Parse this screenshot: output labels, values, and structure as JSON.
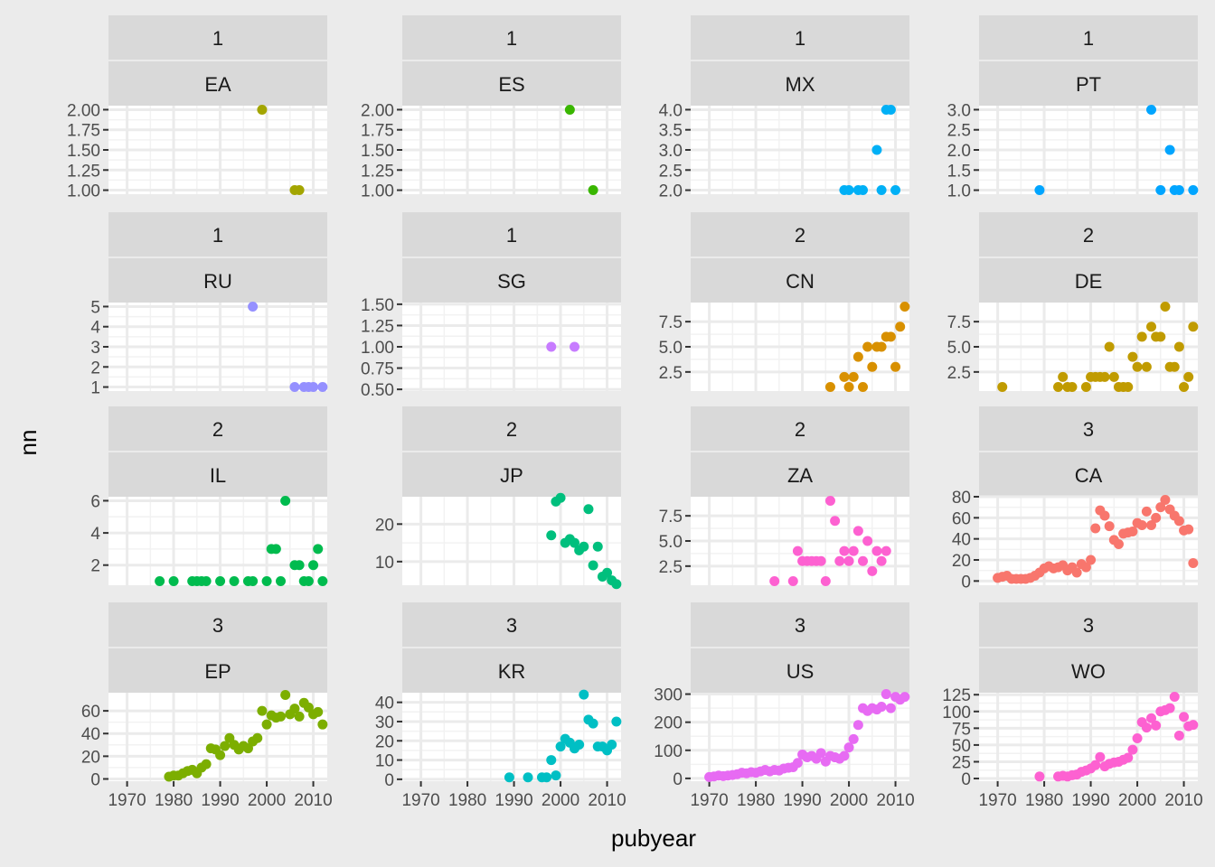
{
  "chart_data": {
    "type": "scatter",
    "xlabel": "pubyear",
    "ylabel": "nn",
    "xlim": [
      1966,
      2013
    ],
    "x_ticks": [
      1970,
      1980,
      1990,
      2000,
      2010
    ],
    "grid": true,
    "legend": "none",
    "panels": [
      {
        "strip_top": "1",
        "strip_bottom": "EA",
        "color": "#a3a500",
        "ylim": [
          0.95,
          2.05
        ],
        "y_ticks": [
          1.0,
          1.25,
          1.5,
          1.75,
          2.0
        ],
        "y_labels": [
          "1.00",
          "1.25",
          "1.50",
          "1.75",
          "2.00"
        ],
        "x": [
          1999,
          2006,
          2007
        ],
        "y": [
          2,
          1,
          1
        ]
      },
      {
        "strip_top": "1",
        "strip_bottom": "ES",
        "color": "#39b600",
        "ylim": [
          0.95,
          2.05
        ],
        "y_ticks": [
          1.0,
          1.25,
          1.5,
          1.75,
          2.0
        ],
        "y_labels": [
          "1.00",
          "1.25",
          "1.50",
          "1.75",
          "2.00"
        ],
        "x": [
          2002,
          2007
        ],
        "y": [
          2,
          1
        ]
      },
      {
        "strip_top": "1",
        "strip_bottom": "MX",
        "color": "#00b0f6",
        "ylim": [
          1.9,
          4.1
        ],
        "y_ticks": [
          2.0,
          2.5,
          3.0,
          3.5,
          4.0
        ],
        "y_labels": [
          "2.0",
          "2.5",
          "3.0",
          "3.5",
          "4.0"
        ],
        "x": [
          1999,
          2000,
          2002,
          2003,
          2006,
          2007,
          2008,
          2009,
          2010
        ],
        "y": [
          2,
          2,
          2,
          2,
          3,
          2,
          4,
          4,
          2
        ]
      },
      {
        "strip_top": "1",
        "strip_bottom": "PT",
        "color": "#00a5ff",
        "ylim": [
          0.9,
          3.1
        ],
        "y_ticks": [
          1.0,
          1.5,
          2.0,
          2.5,
          3.0
        ],
        "y_labels": [
          "1.0",
          "1.5",
          "2.0",
          "2.5",
          "3.0"
        ],
        "x": [
          1979,
          2003,
          2005,
          2007,
          2008,
          2009,
          2012
        ],
        "y": [
          1,
          3,
          1,
          2,
          1,
          1,
          1
        ]
      },
      {
        "strip_top": "1",
        "strip_bottom": "RU",
        "color": "#9590ff",
        "ylim": [
          0.8,
          5.2
        ],
        "y_ticks": [
          1,
          2,
          3,
          4,
          5
        ],
        "y_labels": [
          "1",
          "2",
          "3",
          "4",
          "5"
        ],
        "x": [
          1997,
          2006,
          2008,
          2009,
          2010,
          2012
        ],
        "y": [
          5,
          1,
          1,
          1,
          1,
          1
        ]
      },
      {
        "strip_top": "1",
        "strip_bottom": "SG",
        "color": "#c77cff",
        "ylim": [
          0.48,
          1.52
        ],
        "y_ticks": [
          0.5,
          0.75,
          1.0,
          1.25,
          1.5
        ],
        "y_labels": [
          "0.50",
          "0.75",
          "1.00",
          "1.25",
          "1.50"
        ],
        "x": [
          1998,
          2003
        ],
        "y": [
          1,
          1
        ]
      },
      {
        "strip_top": "2",
        "strip_bottom": "CN",
        "color": "#d89000",
        "ylim": [
          0.6,
          9.4
        ],
        "y_ticks": [
          2.5,
          5.0,
          7.5
        ],
        "y_labels": [
          "2.5",
          "5.0",
          "7.5"
        ],
        "x": [
          1996,
          1999,
          2000,
          2001,
          2002,
          2003,
          2004,
          2005,
          2006,
          2007,
          2008,
          2009,
          2010,
          2011,
          2012
        ],
        "y": [
          1,
          2,
          1,
          2,
          4,
          1,
          5,
          3,
          5,
          5,
          6,
          6,
          3,
          7,
          9
        ]
      },
      {
        "strip_top": "2",
        "strip_bottom": "DE",
        "color": "#c09b00",
        "ylim": [
          0.6,
          9.4
        ],
        "y_ticks": [
          2.5,
          5.0,
          7.5
        ],
        "y_labels": [
          "2.5",
          "5.0",
          "7.5"
        ],
        "x": [
          1971,
          1983,
          1984,
          1985,
          1986,
          1989,
          1990,
          1991,
          1992,
          1993,
          1994,
          1995,
          1996,
          1997,
          1998,
          1999,
          2000,
          2001,
          2002,
          2003,
          2004,
          2005,
          2006,
          2007,
          2008,
          2009,
          2010,
          2011,
          2012
        ],
        "y": [
          1,
          1,
          2,
          1,
          1,
          1,
          2,
          2,
          2,
          2,
          5,
          2,
          1,
          1,
          1,
          4,
          3,
          6,
          3,
          7,
          6,
          6,
          9,
          3,
          3,
          5,
          1,
          2,
          7
        ]
      },
      {
        "strip_top": "2",
        "strip_bottom": "IL",
        "color": "#00bb4e",
        "ylim": [
          0.75,
          6.25
        ],
        "y_ticks": [
          2,
          4,
          6
        ],
        "y_labels": [
          "2",
          "4",
          "6"
        ],
        "x": [
          1977,
          1980,
          1984,
          1985,
          1986,
          1987,
          1990,
          1993,
          1996,
          1997,
          2000,
          2001,
          2002,
          2003,
          2004,
          2006,
          2007,
          2008,
          2009,
          2010,
          2011,
          2012
        ],
        "y": [
          1,
          1,
          1,
          1,
          1,
          1,
          1,
          1,
          1,
          1,
          1,
          3,
          3,
          1,
          6,
          2,
          2,
          1,
          1,
          2,
          3,
          1
        ]
      },
      {
        "strip_top": "2",
        "strip_bottom": "JP",
        "color": "#00bf7d",
        "ylim": [
          3.7,
          27.3
        ],
        "y_ticks": [
          10,
          20
        ],
        "y_labels": [
          "10",
          "20"
        ],
        "x": [
          1998,
          1999,
          2000,
          2001,
          2002,
          2003,
          2004,
          2005,
          2006,
          2007,
          2008,
          2009,
          2010,
          2011,
          2012
        ],
        "y": [
          17,
          26,
          27,
          15,
          16,
          15,
          13,
          14,
          24,
          9,
          14,
          6,
          7,
          5,
          4
        ]
      },
      {
        "strip_top": "2",
        "strip_bottom": "ZA",
        "color": "#f8766d",
        "ylim": [
          0.6,
          9.4
        ],
        "y_ticks": [
          2.5,
          5.0,
          7.5
        ],
        "y_labels": [
          "2.5",
          "5.0",
          "7.5"
        ],
        "x": [
          1984,
          1988,
          1989,
          1990,
          1991,
          1992,
          1993,
          1994,
          1995,
          1996,
          1997,
          1998,
          1999,
          2000,
          2001,
          2002,
          2003,
          2004,
          2005,
          2006,
          2007,
          2008
        ],
        "y": [
          1,
          1,
          4,
          3,
          3,
          3,
          3,
          3,
          1,
          9,
          7,
          3,
          4,
          3,
          4,
          6,
          3,
          5,
          2,
          4,
          3,
          4
        ],
        "color_override": "#fd61d1"
      },
      {
        "strip_top": "3",
        "strip_bottom": "CA",
        "color": "#f8766d",
        "ylim": [
          -4,
          80
        ],
        "y_ticks": [
          0,
          20,
          40,
          60,
          80
        ],
        "y_labels": [
          "0",
          "20",
          "40",
          "60",
          "80"
        ],
        "x": [
          1970,
          1971,
          1972,
          1973,
          1974,
          1975,
          1976,
          1977,
          1978,
          1979,
          1980,
          1981,
          1982,
          1983,
          1984,
          1985,
          1986,
          1987,
          1988,
          1989,
          1990,
          1991,
          1992,
          1993,
          1994,
          1995,
          1996,
          1997,
          1998,
          1999,
          2000,
          2001,
          2002,
          2003,
          2004,
          2005,
          2006,
          2007,
          2008,
          2009,
          2010,
          2011,
          2012
        ],
        "y": [
          3,
          4,
          5,
          2,
          2,
          2,
          2,
          3,
          5,
          8,
          12,
          14,
          12,
          13,
          15,
          10,
          13,
          8,
          16,
          13,
          20,
          50,
          67,
          62,
          52,
          39,
          35,
          45,
          46,
          47,
          55,
          53,
          66,
          53,
          60,
          70,
          77,
          68,
          62,
          57,
          48,
          49,
          17
        ]
      },
      {
        "strip_top": "3",
        "strip_bottom": "EP",
        "color": "#7cae00",
        "ylim": [
          -2,
          76
        ],
        "y_ticks": [
          0,
          20,
          40,
          60
        ],
        "y_labels": [
          "0",
          "20",
          "40",
          "60"
        ],
        "x": [
          1979,
          1980,
          1981,
          1982,
          1983,
          1984,
          1985,
          1986,
          1987,
          1988,
          1989,
          1990,
          1991,
          1992,
          1993,
          1994,
          1995,
          1996,
          1997,
          1998,
          1999,
          2000,
          2001,
          2002,
          2003,
          2004,
          2005,
          2006,
          2007,
          2008,
          2009,
          2010,
          2011,
          2012
        ],
        "y": [
          2,
          3,
          3,
          5,
          7,
          8,
          5,
          10,
          13,
          27,
          26,
          21,
          29,
          36,
          30,
          26,
          29,
          27,
          33,
          36,
          60,
          48,
          56,
          54,
          55,
          74,
          57,
          62,
          55,
          67,
          63,
          57,
          59,
          48
        ]
      },
      {
        "strip_top": "3",
        "strip_bottom": "KR",
        "color": "#00bfc4",
        "ylim": [
          -1,
          45
        ],
        "y_ticks": [
          0,
          10,
          20,
          30,
          40
        ],
        "y_labels": [
          "0",
          "10",
          "20",
          "30",
          "40"
        ],
        "x": [
          1989,
          1993,
          1996,
          1997,
          1998,
          1999,
          2000,
          2001,
          2002,
          2003,
          2004,
          2005,
          2006,
          2007,
          2008,
          2009,
          2010,
          2011,
          2012
        ],
        "y": [
          1,
          1,
          1,
          1,
          10,
          2,
          17,
          21,
          19,
          16,
          18,
          44,
          31,
          29,
          17,
          17,
          15,
          18,
          30
        ]
      },
      {
        "strip_top": "3",
        "strip_bottom": "US",
        "color": "#e76bf3",
        "ylim": [
          -10,
          305
        ],
        "y_ticks": [
          0,
          100,
          200,
          300
        ],
        "y_labels": [
          "0",
          "100",
          "200",
          "300"
        ],
        "x": [
          1970,
          1971,
          1972,
          1973,
          1974,
          1975,
          1976,
          1977,
          1978,
          1979,
          1980,
          1981,
          1982,
          1983,
          1984,
          1985,
          1986,
          1987,
          1988,
          1989,
          1990,
          1991,
          1992,
          1993,
          1994,
          1995,
          1996,
          1997,
          1998,
          1999,
          2000,
          2001,
          2002,
          2003,
          2004,
          2005,
          2006,
          2007,
          2008,
          2009,
          2010,
          2011,
          2012
        ],
        "y": [
          5,
          7,
          10,
          8,
          10,
          12,
          15,
          20,
          18,
          22,
          20,
          25,
          30,
          25,
          30,
          28,
          35,
          38,
          40,
          55,
          85,
          75,
          80,
          70,
          90,
          60,
          80,
          75,
          70,
          80,
          110,
          140,
          190,
          250,
          240,
          250,
          245,
          255,
          300,
          250,
          290,
          280,
          290
        ]
      },
      {
        "strip_top": "3",
        "strip_bottom": "WO",
        "color": "#fd61d1",
        "ylim": [
          -4,
          128
        ],
        "y_ticks": [
          0,
          25,
          50,
          75,
          100,
          125
        ],
        "y_labels": [
          "0",
          "25",
          "50",
          "75",
          "100",
          "125"
        ],
        "x": [
          1979,
          1983,
          1984,
          1985,
          1986,
          1987,
          1988,
          1989,
          1990,
          1991,
          1992,
          1993,
          1994,
          1995,
          1996,
          1997,
          1998,
          1999,
          2000,
          2001,
          2002,
          2003,
          2004,
          2005,
          2006,
          2007,
          2008,
          2009,
          2010,
          2011,
          2012
        ],
        "y": [
          3,
          3,
          4,
          3,
          5,
          6,
          10,
          12,
          15,
          20,
          32,
          18,
          22,
          24,
          25,
          28,
          31,
          43,
          60,
          84,
          76,
          90,
          79,
          100,
          102,
          105,
          122,
          64,
          92,
          78,
          80
        ]
      }
    ]
  }
}
